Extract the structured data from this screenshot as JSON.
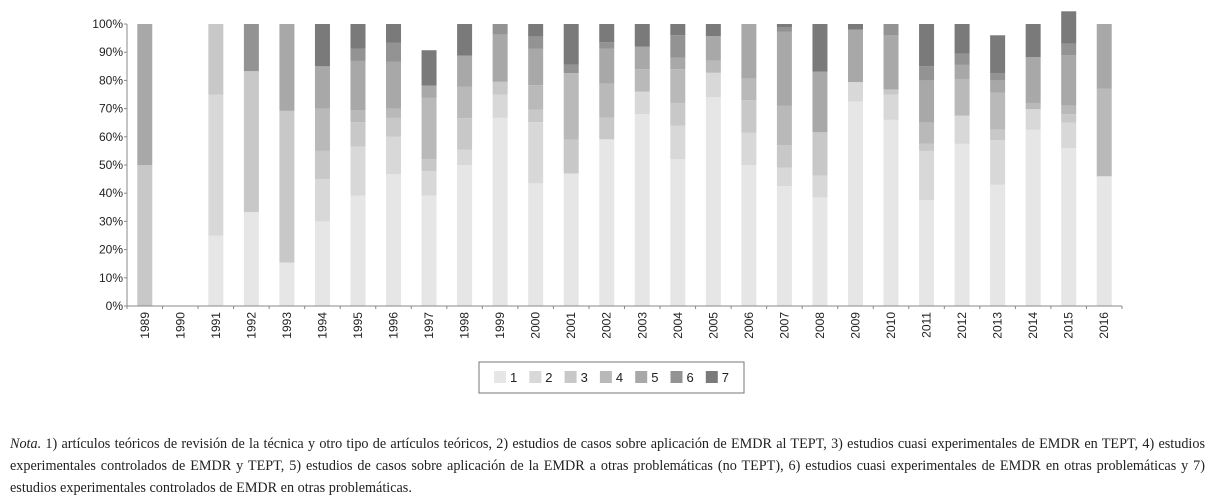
{
  "chart_data": {
    "type": "bar",
    "stacked": true,
    "percent": true,
    "title": "",
    "xlabel": "",
    "ylabel": "",
    "ylim": [
      0,
      100
    ],
    "yticks": [
      "0%",
      "10%",
      "20%",
      "30%",
      "40%",
      "50%",
      "60%",
      "70%",
      "80%",
      "90%",
      "100%"
    ],
    "grid": false,
    "legend_placement": "bottom-center",
    "categories": [
      "1989",
      "1990",
      "1991",
      "1992",
      "1993",
      "1994",
      "1995",
      "1996",
      "1997",
      "1998",
      "1999",
      "2000",
      "2001",
      "2002",
      "2003",
      "2004",
      "2005",
      "2006",
      "2007",
      "2008",
      "2009",
      "2010",
      "2011",
      "2012",
      "2013",
      "2014",
      "2015",
      "2016"
    ],
    "series": [
      {
        "name": "1",
        "color": "#e6e6e6",
        "values": [
          0,
          0,
          25,
          33.3,
          15.4,
          30,
          39.1,
          46.7,
          39.1,
          50,
          66.7,
          43.5,
          47,
          59.1,
          68,
          52,
          74,
          50,
          42.5,
          38.5,
          72.5,
          66,
          37.5,
          57.5,
          43,
          62.5,
          56,
          46
        ]
      },
      {
        "name": "2",
        "color": "#d8d8d8",
        "values": [
          0,
          0,
          50,
          0,
          0,
          15,
          17.4,
          13.3,
          8.7,
          5.5,
          8.3,
          21.7,
          0,
          0,
          8,
          12,
          8.7,
          11.5,
          6.6,
          7.7,
          6.9,
          9,
          17.5,
          10,
          15.8,
          7.3,
          9,
          0
        ]
      },
      {
        "name": "3",
        "color": "#c8c8c8",
        "values": [
          50,
          0,
          25,
          50,
          53.8,
          10,
          8.7,
          6.7,
          4.3,
          11.1,
          4.5,
          4.4,
          12,
          7.7,
          0,
          8,
          0,
          11.5,
          7.9,
          15.4,
          0,
          1.8,
          2.5,
          0,
          3.7,
          0,
          3,
          0
        ]
      },
      {
        "name": "4",
        "color": "#b9b9b9",
        "values": [
          0,
          0,
          0,
          0,
          0,
          15,
          4.3,
          3.3,
          21.7,
          11.1,
          0,
          8.7,
          23.6,
          12,
          8,
          12,
          4.3,
          7.7,
          14.1,
          0,
          0,
          0,
          7.5,
          13,
          13.2,
          2.2,
          3,
          31
        ]
      },
      {
        "name": "5",
        "color": "#a8a8a8",
        "values": [
          50,
          0,
          0,
          0,
          30.8,
          15,
          17.4,
          16.7,
          4.4,
          11.1,
          16.7,
          13,
          0,
          12.4,
          8,
          4,
          8.7,
          19.3,
          26.1,
          21.5,
          18.6,
          19.3,
          15,
          5,
          4.3,
          16.3,
          18,
          23
        ]
      },
      {
        "name": "6",
        "color": "#939393",
        "values": [
          0,
          0,
          0,
          16.7,
          0,
          0,
          4.3,
          6.6,
          0,
          0,
          3.8,
          4.3,
          3,
          2.3,
          0,
          8,
          0,
          0,
          1.6,
          0,
          0,
          3.9,
          5,
          4,
          2.5,
          0,
          4,
          0
        ]
      },
      {
        "name": "7",
        "color": "#7a7a7a",
        "values": [
          0,
          0,
          0,
          0,
          0,
          15,
          8.8,
          6.7,
          12.5,
          11.2,
          0,
          4.4,
          14.4,
          6.5,
          8,
          4,
          4.3,
          0,
          1.2,
          16.9,
          2,
          0,
          15,
          10.5,
          13.5,
          11.7,
          11.5,
          0
        ]
      }
    ]
  },
  "note": {
    "lead": "Nota.",
    "text": " 1) artículos teóricos de revisión de la técnica y otro tipo de artículos teóricos, 2) estudios de casos sobre aplicación de EMDR al TEPT, 3) estudios cuasi experimentales de EMDR en TEPT, 4) estudios experimentales controlados de EMDR y TEPT, 5) estudios de casos sobre aplicación de la EMDR a otras problemáticas (no TEPT), 6) estudios cuasi experimentales de EMDR en otras problemáticas y 7) estudios experimentales controlados de EMDR en otras problemáticas."
  }
}
